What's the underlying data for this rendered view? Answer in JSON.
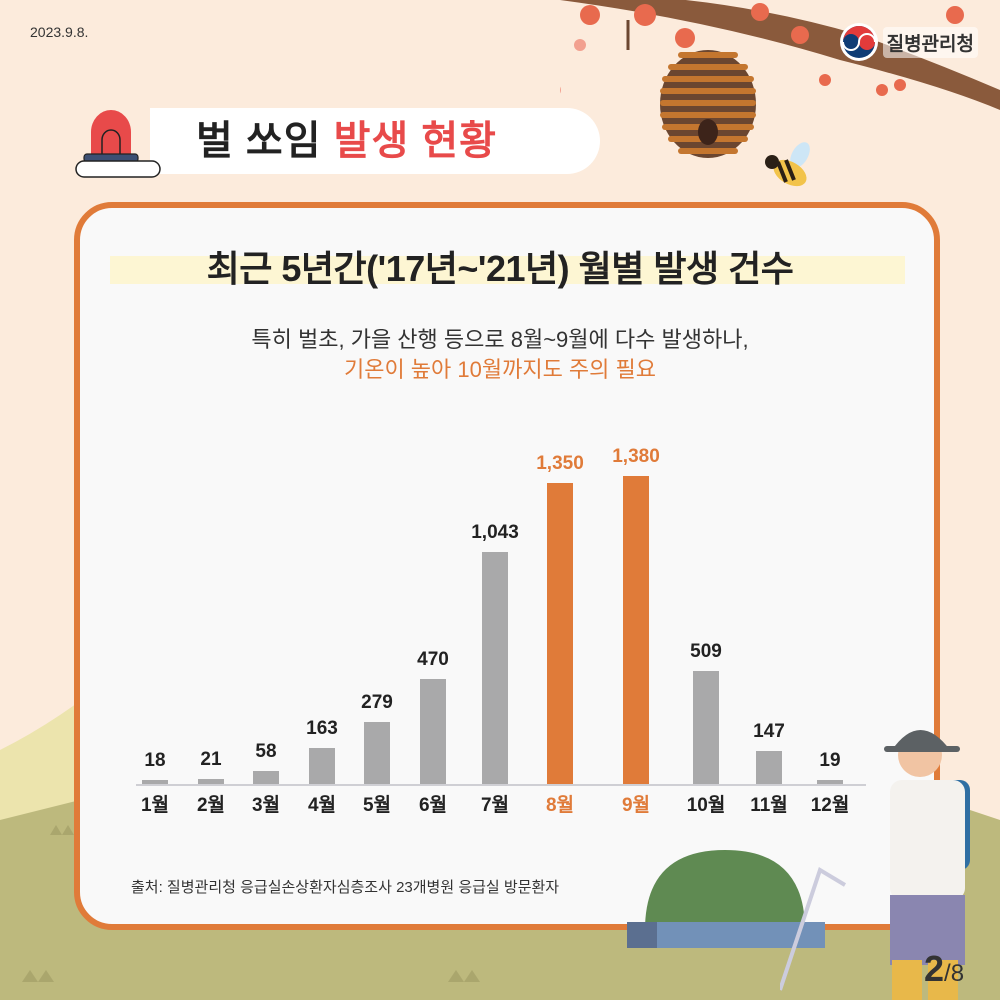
{
  "header": {
    "date": "2023.9.8.",
    "org_name": "질병관리청",
    "banner_title_black": "벌 쏘임 ",
    "banner_title_red": "발생 현황"
  },
  "card": {
    "title": "최근 5년간('17년~'21년) 월별 발생 건수",
    "subtitle_line1": "특히  벌초, 가을 산행 등으로 8월~9월에 다수 발생하나,",
    "subtitle_line2": "기온이 높아 10월까지도 주의 필요",
    "source": "출처: 질병관리청 응급실손상환자심층조사 23개병원 응급실 방문환자"
  },
  "pagination": {
    "current": "2",
    "total": "/8"
  },
  "colors": {
    "accent_orange": "#e07b39",
    "bar_gray": "#a9a9aa",
    "title_red": "#e84a4a",
    "background": "#fcebdc"
  },
  "chart_data": {
    "type": "bar",
    "title": "최근 5년간('17년~'21년) 월별 발생 건수",
    "xlabel": "",
    "ylabel": "",
    "categories": [
      "1월",
      "2월",
      "3월",
      "4월",
      "5월",
      "6월",
      "7월",
      "8월",
      "9월",
      "10월",
      "11월",
      "12월"
    ],
    "values": [
      18,
      21,
      58,
      163,
      279,
      470,
      1043,
      1350,
      1380,
      509,
      147,
      19
    ],
    "value_labels": [
      "18",
      "21",
      "58",
      "163",
      "279",
      "470",
      "1,043",
      "1,350",
      "1,380",
      "509",
      "147",
      "19"
    ],
    "highlighted": [
      "8월",
      "9월"
    ],
    "ylim": [
      0,
      1400
    ],
    "grid": false,
    "legend": null
  }
}
